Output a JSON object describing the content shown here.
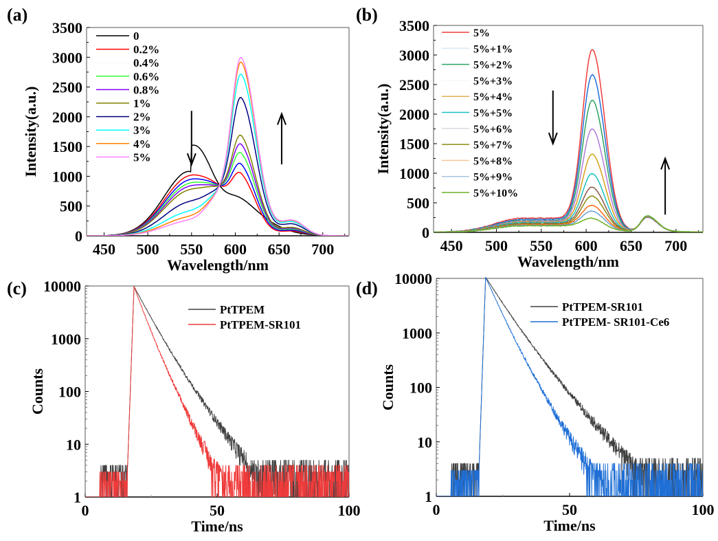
{
  "chart_data": [
    {
      "id": "a",
      "panel_label": "(a)",
      "type": "line",
      "xlabel": "Wavelength/nm",
      "ylabel": "Intensity(a.u.)",
      "xlim": [
        430,
        730
      ],
      "ylim": [
        0,
        3500
      ],
      "xticks": [
        450,
        500,
        550,
        600,
        650,
        700
      ],
      "yticks": [
        0,
        500,
        1000,
        1500,
        2000,
        2500,
        3000,
        3500
      ],
      "legend_position": "top-left",
      "annotations": [
        {
          "type": "arrow",
          "direction": "down",
          "at_x": 550,
          "from_y": 2100,
          "to_y": 1200
        },
        {
          "type": "arrow",
          "direction": "up",
          "at_x": 653,
          "from_y": 1200,
          "to_y": 2050
        }
      ],
      "isosbestic_point": {
        "x": 582,
        "y": 850
      },
      "series": [
        {
          "name": "0",
          "color": "#000000",
          "peak1": {
            "x": 549,
            "y": 1100
          },
          "peak2": {
            "x": 600,
            "y": 0
          }
        },
        {
          "name": "0.2%",
          "color": "#ff0000",
          "peak1": {
            "x": 548,
            "y": 1000
          },
          "peak2": {
            "x": 595,
            "y": 870
          }
        },
        {
          "name": "0.4%",
          "color": "#0000ff",
          "peak1": {
            "x": 548,
            "y": 930
          },
          "peak2": {
            "x": 605,
            "y": 1030
          }
        },
        {
          "name": "0.6%",
          "color": "#33ff33",
          "peak1": {
            "x": 548,
            "y": 870
          },
          "peak2": {
            "x": 605,
            "y": 1220
          }
        },
        {
          "name": "0.8%",
          "color": "#7f00ff",
          "peak1": {
            "x": 548,
            "y": 820
          },
          "peak2": {
            "x": 605,
            "y": 1370
          }
        },
        {
          "name": "1%",
          "color": "#808000",
          "peak1": {
            "x": 548,
            "y": 760
          },
          "peak2": {
            "x": 605,
            "y": 1520
          }
        },
        {
          "name": "2%",
          "color": "#000080",
          "peak1": {
            "x": 548,
            "y": 560
          },
          "peak2": {
            "x": 606,
            "y": 2170
          }
        },
        {
          "name": "3%",
          "color": "#00ffff",
          "peak1": {
            "x": 548,
            "y": 400
          },
          "peak2": {
            "x": 607,
            "y": 2570
          }
        },
        {
          "name": "4%",
          "color": "#ff8000",
          "peak1": {
            "x": 548,
            "y": 310
          },
          "peak2": {
            "x": 607,
            "y": 2780
          }
        },
        {
          "name": "5%",
          "color": "#ff80ff",
          "peak1": {
            "x": 548,
            "y": 250
          },
          "peak2": {
            "x": 607,
            "y": 2860
          }
        }
      ]
    },
    {
      "id": "b",
      "panel_label": "(b)",
      "type": "line",
      "xlabel": "Wavelength/nm",
      "ylabel": "Intensity(a.u.)",
      "xlim": [
        430,
        730
      ],
      "ylim": [
        0,
        3500
      ],
      "xticks": [
        450,
        500,
        550,
        600,
        650,
        700
      ],
      "yticks": [
        0,
        500,
        1000,
        1500,
        2000,
        2500,
        3000,
        3500
      ],
      "legend_position": "top-left",
      "annotations": [
        {
          "type": "arrow",
          "direction": "down",
          "at_x": 563,
          "from_y": 2400,
          "to_y": 1500
        },
        {
          "type": "arrow",
          "direction": "up",
          "at_x": 688,
          "from_y": 300,
          "to_y": 1250
        }
      ],
      "series": [
        {
          "name": "5%",
          "color": "#ef3b3b",
          "shoulder": 240,
          "peak_608": 3120,
          "peak_668": 290
        },
        {
          "name": "5%+1%",
          "color": "#1f6fd6",
          "shoulder": 220,
          "peak_608": 2690,
          "peak_668": 295
        },
        {
          "name": "5%+2%",
          "color": "#2ca25f",
          "shoulder": 200,
          "peak_608": 2260,
          "peak_668": 300
        },
        {
          "name": "5%+3%",
          "color": "#b07ad8",
          "shoulder": 190,
          "peak_608": 1770,
          "peak_668": 300
        },
        {
          "name": "5%+4%",
          "color": "#d4a017",
          "shoulder": 175,
          "peak_608": 1340,
          "peak_668": 305
        },
        {
          "name": "5%+5%",
          "color": "#17bfbf",
          "shoulder": 165,
          "peak_608": 1010,
          "peak_668": 305
        },
        {
          "name": "5%+6%",
          "color": "#8c564b",
          "shoulder": 150,
          "peak_608": 780,
          "peak_668": 310
        },
        {
          "name": "5%+7%",
          "color": "#8a8a10",
          "shoulder": 140,
          "peak_608": 630,
          "peak_668": 310
        },
        {
          "name": "5%+8%",
          "color": "#ff6a13",
          "shoulder": 130,
          "peak_608": 470,
          "peak_668": 310
        },
        {
          "name": "5%+9%",
          "color": "#6ca0d0",
          "shoulder": 120,
          "peak_608": 370,
          "peak_668": 315
        },
        {
          "name": "5%+10%",
          "color": "#6ab023",
          "shoulder": 110,
          "peak_608": 250,
          "peak_668": 315
        }
      ],
      "legend_colors": [
        "#ef3b3b",
        "#dbe7f3",
        "#2ca25f",
        "#f7f7f7",
        "#e0b050",
        "#17bfbf",
        "#d9d9e3",
        "#8a8a10",
        "#f5c79a",
        "#a9c4dd",
        "#6ab023"
      ]
    },
    {
      "id": "c",
      "panel_label": "(c)",
      "type": "line",
      "yscale": "log",
      "xlabel": "Time/ns",
      "ylabel": "Counts",
      "xlim": [
        0,
        100
      ],
      "ylim": [
        1,
        10000
      ],
      "xticks": [
        0,
        50,
        100
      ],
      "yticks": [
        1,
        10,
        100,
        1000,
        10000
      ],
      "legend_position": "top-right",
      "series": [
        {
          "name": "PtTPEM",
          "color": "#404040",
          "rise_start_ns": 16,
          "peak_ns": 18.5,
          "peak_counts": 9800,
          "decay_tau_ns": 4.2,
          "baseline_counts": 3
        },
        {
          "name": "PtTPEM-SR101",
          "color": "#ef3b3b",
          "rise_start_ns": 16,
          "peak_ns": 18.5,
          "peak_counts": 9800,
          "decay_tau_ns": 2.9,
          "baseline_counts": 2
        }
      ]
    },
    {
      "id": "d",
      "panel_label": "(d)",
      "type": "line",
      "yscale": "log",
      "xlabel": "Time/ns",
      "ylabel": "Counts",
      "xlim": [
        0,
        100
      ],
      "ylim": [
        1,
        10000
      ],
      "xticks": [
        0,
        50,
        100
      ],
      "yticks": [
        1,
        10,
        100,
        1000,
        10000
      ],
      "legend_position": "top-right",
      "series": [
        {
          "name": "PtTPEM-SR101",
          "color": "#404040",
          "rise_start_ns": 16,
          "peak_ns": 18.5,
          "peak_counts": 10500,
          "decay_tau_ns": 5.2,
          "baseline_counts": 3
        },
        {
          "name": "PtTPEM- SR101-Ce6",
          "color": "#1f6fd6",
          "rise_start_ns": 16,
          "peak_ns": 18.5,
          "peak_counts": 10500,
          "decay_tau_ns": 3.6,
          "baseline_counts": 2
        }
      ]
    }
  ]
}
